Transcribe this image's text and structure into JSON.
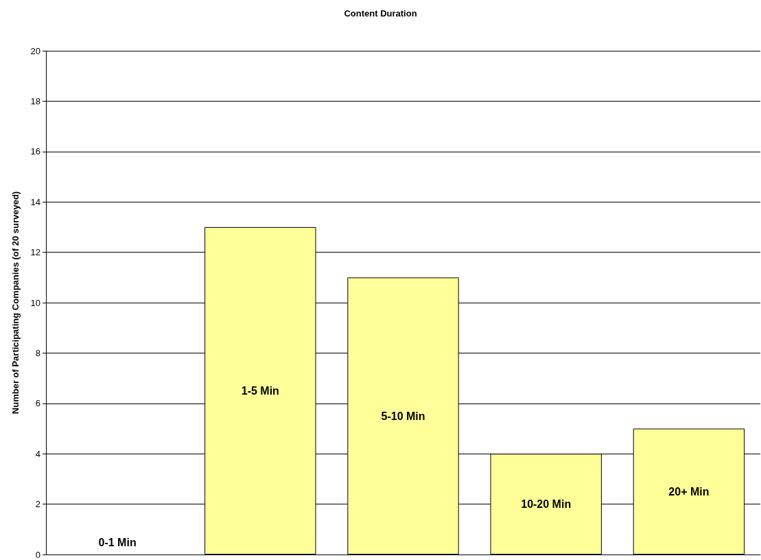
{
  "chart_data": {
    "type": "bar",
    "title": "Content Duration",
    "ylabel": "Number of Participating Companies (of 20 surveyed)",
    "categories": [
      "0-1 Min",
      "1-5 Min",
      "5-10 Min",
      "10-20 Min",
      "20+ Min"
    ],
    "values": [
      0,
      13,
      11,
      4,
      5
    ],
    "color": "#ffff99",
    "ylim": [
      0,
      20
    ],
    "yticks": [
      0,
      2,
      4,
      6,
      8,
      10,
      12,
      14,
      16,
      18,
      20
    ],
    "grid": "y",
    "tick_labels": "y"
  }
}
